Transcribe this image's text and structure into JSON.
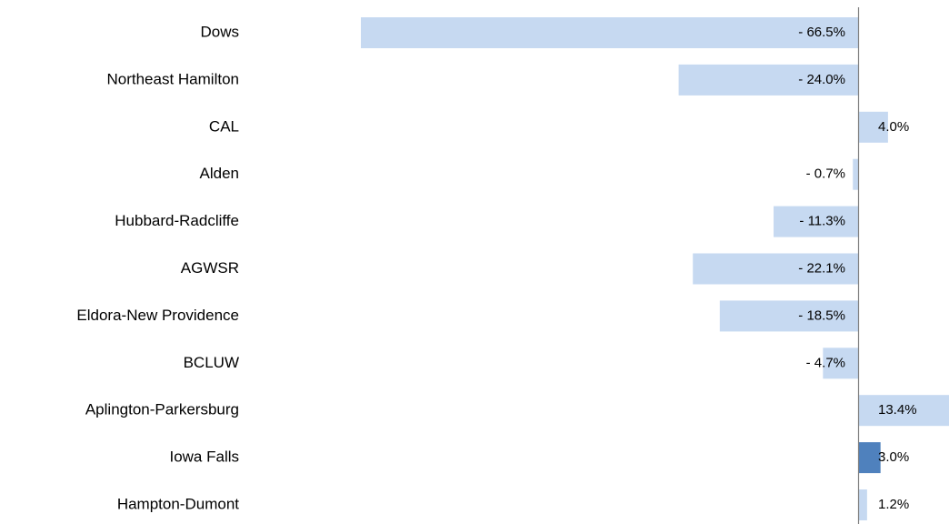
{
  "chart_data": {
    "type": "hbar",
    "categories": [
      "Dows",
      "Northeast Hamilton",
      "CAL",
      "Alden",
      "Hubbard-Radcliffe",
      "AGWSR",
      "Eldora-New Providence",
      "BCLUW",
      "Aplington-Parkersburg",
      "Iowa Falls",
      "Hampton-Dumont"
    ],
    "values": [
      -66.5,
      -24.0,
      4.0,
      -0.7,
      -11.3,
      -22.1,
      -18.5,
      -4.7,
      13.4,
      3.0,
      1.2
    ],
    "value_labels": [
      "- 66.5%",
      "- 24.0%",
      "4.0%",
      "- 0.7%",
      "- 11.3%",
      "- 22.1%",
      "- 18.5%",
      "- 4.7%",
      "13.4%",
      "3.0%",
      "1.2%"
    ],
    "colors": [
      "#c6d9f1",
      "#c6d9f1",
      "#c6d9f1",
      "#c6d9f1",
      "#c6d9f1",
      "#c6d9f1",
      "#c6d9f1",
      "#c6d9f1",
      "#c6d9f1",
      "#4f81bd",
      "#c6d9f1"
    ]
  }
}
